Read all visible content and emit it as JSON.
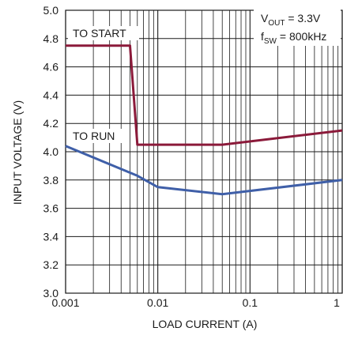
{
  "chart_data": {
    "type": "line",
    "title": "",
    "xlabel": "LOAD CURRENT (A)",
    "ylabel": "INPUT VOLTAGE (V)",
    "x_scale": "log",
    "xlim": [
      0.001,
      1
    ],
    "ylim": [
      3.0,
      5.0
    ],
    "grid": true,
    "x_ticks": [
      0.001,
      0.01,
      0.1,
      1
    ],
    "x_tick_labels": [
      "0.001",
      "0.01",
      "0.1",
      "1"
    ],
    "y_ticks": [
      3.0,
      3.2,
      3.4,
      3.6,
      3.8,
      4.0,
      4.2,
      4.4,
      4.6,
      4.8,
      5.0
    ],
    "y_tick_labels": [
      "3.0",
      "3.2",
      "3.4",
      "3.6",
      "3.8",
      "4.0",
      "4.2",
      "4.4",
      "4.6",
      "4.8",
      "5.0"
    ],
    "series": [
      {
        "name": "TO START",
        "color": "#8b1a3a",
        "x": [
          0.001,
          0.005,
          0.006,
          0.05,
          1
        ],
        "y": [
          4.75,
          4.75,
          4.05,
          4.05,
          4.15
        ]
      },
      {
        "name": "TO RUN",
        "color": "#3f5fa8",
        "x": [
          0.001,
          0.006,
          0.01,
          0.05,
          1
        ],
        "y": [
          4.04,
          3.83,
          3.75,
          3.7,
          3.8
        ]
      }
    ],
    "annotations": {
      "vout_main": "V",
      "vout_sub": "OUT",
      "vout_rest": " = 3.3V",
      "fsw_main": "f",
      "fsw_sub": "SW",
      "fsw_rest": " = 800kHz"
    }
  }
}
